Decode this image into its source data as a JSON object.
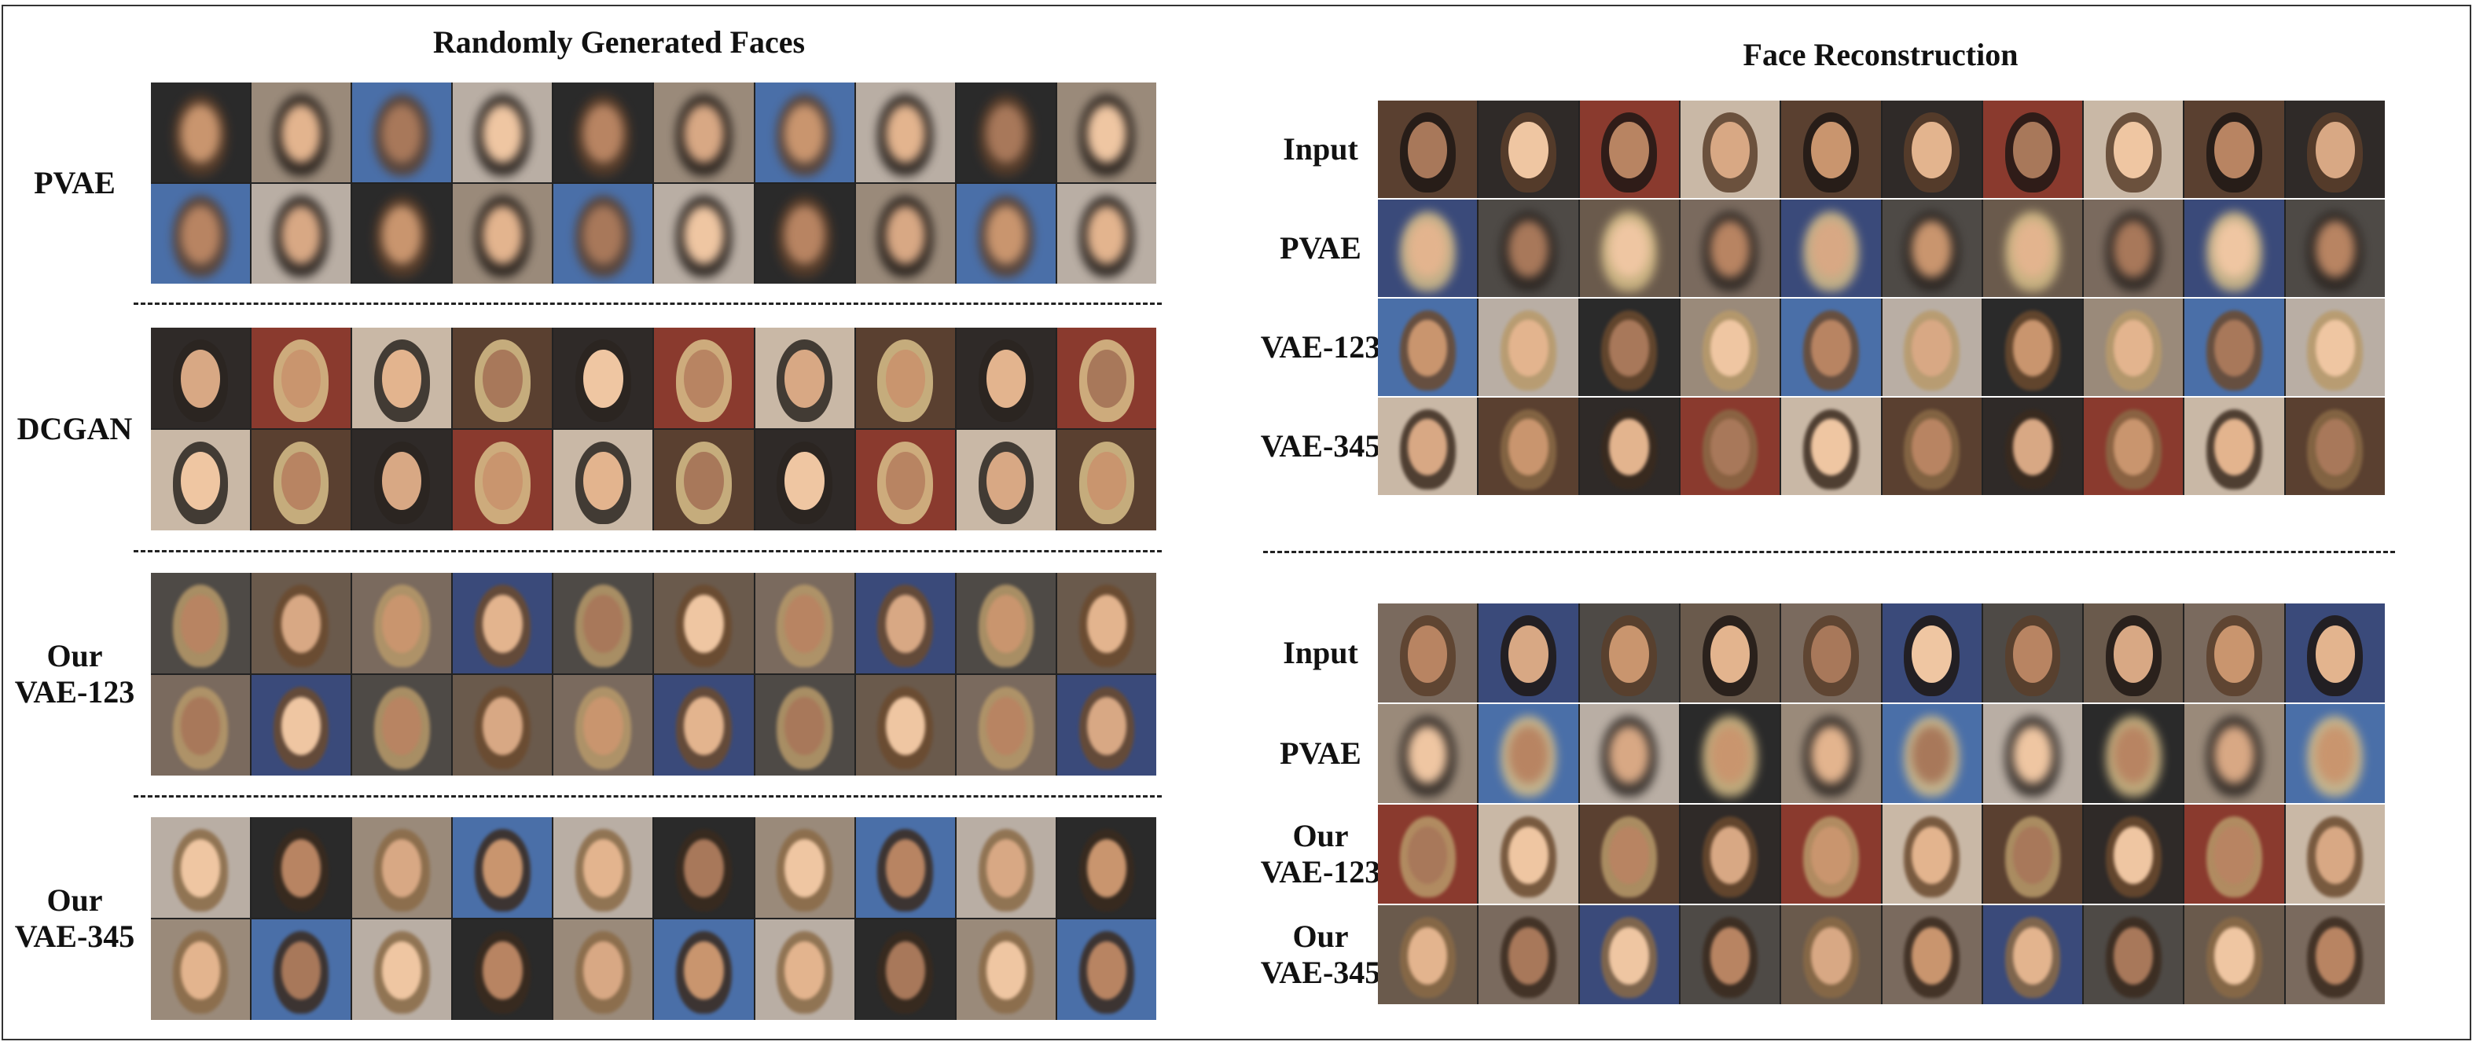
{
  "left_panel": {
    "title": "Randomly Generated Faces",
    "blocks": [
      {
        "label": [
          "PVAE"
        ],
        "rows": 2,
        "style": "blur"
      },
      {
        "label": [
          "DCGAN"
        ],
        "rows": 2,
        "style": "sharp"
      },
      {
        "label": [
          "Our",
          "VAE-123"
        ],
        "rows": 2,
        "style": "soft"
      },
      {
        "label": [
          "Our",
          "VAE-345"
        ],
        "rows": 2,
        "style": "soft"
      }
    ]
  },
  "right_panel": {
    "title": "Face Reconstruction",
    "groups": [
      {
        "rows": [
          {
            "label": [
              "Input"
            ],
            "style": "sharp"
          },
          {
            "label": [
              "PVAE"
            ],
            "style": "blur"
          },
          {
            "label": [
              "VAE-123"
            ],
            "style": "soft"
          },
          {
            "label": [
              "VAE-345"
            ],
            "style": "soft"
          }
        ]
      },
      {
        "rows": [
          {
            "label": [
              "Input"
            ],
            "style": "sharp"
          },
          {
            "label": [
              "PVAE"
            ],
            "style": "blur"
          },
          {
            "label": [
              "Our",
              "VAE-123"
            ],
            "style": "soft"
          },
          {
            "label": [
              "Our",
              "VAE-345"
            ],
            "style": "soft"
          }
        ]
      }
    ]
  },
  "palette": {
    "backgrounds": [
      "#6a5a4c",
      "#4a6fa8",
      "#2f2a28",
      "#7a6a5e",
      "#b9aea4",
      "#8a3a2e",
      "#3a4a7a",
      "#2a2a2a",
      "#c9b8a6",
      "#4e4a46",
      "#9a8a7a",
      "#5a4030"
    ],
    "hair": [
      "#3a2a1e",
      "#6b4a2e",
      "#d8c08a",
      "#1e1814",
      "#8a6a46",
      "#b89a6a",
      "#2a2420",
      "#5a3e2a"
    ],
    "skin": [
      "#e3b48e",
      "#c9956e",
      "#d8a884",
      "#b88462",
      "#efc6a2",
      "#a8785a"
    ]
  }
}
